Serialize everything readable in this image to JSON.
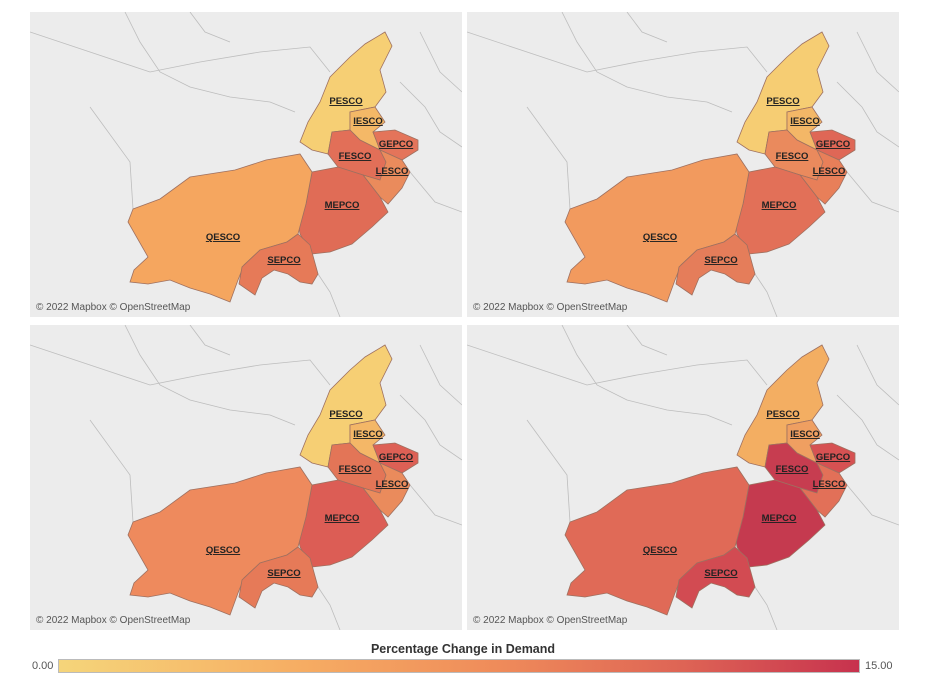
{
  "attribution": "© 2022 Mapbox © OpenStreetMap",
  "legend": {
    "title": "Percentage Change in Demand",
    "min": "0.00",
    "max": "15.00"
  },
  "regions": [
    "PESCO",
    "IESCO",
    "GEPCO",
    "FESCO",
    "LESCO",
    "MEPCO",
    "QESCO",
    "SEPCO"
  ],
  "panels": [
    {
      "name": "map-panel-1",
      "colors": {
        "PESCO": "#f6cf74",
        "IESCO": "#f4b867",
        "GEPCO": "#e4745a",
        "FESCO": "#e26f58",
        "LESCO": "#ea8b5c",
        "MEPCO": "#e06c56",
        "QESCO": "#f5a65f",
        "SEPCO": "#e67a58"
      }
    },
    {
      "name": "map-panel-2",
      "colors": {
        "PESCO": "#f6cd73",
        "IESCO": "#f3b767",
        "GEPCO": "#df6756",
        "FESCO": "#ea8a5d",
        "LESCO": "#e87f59",
        "MEPCO": "#e27058",
        "QESCO": "#f29a5e",
        "SEPCO": "#e57d5a"
      }
    },
    {
      "name": "map-panel-3",
      "colors": {
        "PESCO": "#f6cf74",
        "IESCO": "#f4b767",
        "GEPCO": "#dd6055",
        "FESCO": "#e37557",
        "LESCO": "#ea8b5c",
        "MEPCO": "#dc5d55",
        "QESCO": "#ee8a5d",
        "SEPCO": "#e67a58"
      }
    },
    {
      "name": "map-panel-4",
      "colors": {
        "PESCO": "#f3ae62",
        "IESCO": "#ef9f61",
        "GEPCO": "#d65152",
        "FESCO": "#c73d50",
        "LESCO": "#e27058",
        "MEPCO": "#c53a4f",
        "QESCO": "#e06a57",
        "SEPCO": "#d24b52"
      }
    }
  ]
}
